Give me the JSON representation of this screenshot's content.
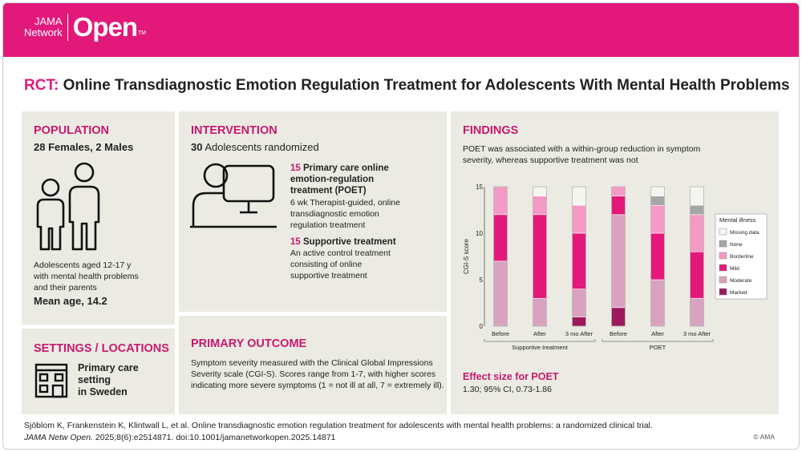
{
  "brand": {
    "line1": "JAMA",
    "line2": "Network",
    "name": "Open",
    "tm": "TM"
  },
  "title": {
    "prefix": "RCT:",
    "text": "Online Transdiagnostic Emotion Regulation Treatment for Adolescents With Mental Health Problems"
  },
  "population": {
    "heading": "POPULATION",
    "counts": "28 Females, 2 Males",
    "desc1": "Adolescents aged 12-17 y",
    "desc2": "with mental health problems",
    "desc3": "and their parents",
    "mean_age": "Mean age, 14.2",
    "icon": "people-icon"
  },
  "settings": {
    "heading": "SETTINGS / LOCATIONS",
    "line1": "Primary care",
    "line2": "setting",
    "line3": "in Sweden",
    "icon": "building-icon"
  },
  "intervention": {
    "heading": "INTERVENTION",
    "total_num": "30",
    "total_text": "Adolescents randomized",
    "icon": "computer-user-icon",
    "arm1": {
      "num": "15",
      "name1": "Primary care online",
      "name2": "emotion-regulation",
      "name3": "treatment (POET)",
      "desc1": "6 wk Therapist-guided, online",
      "desc2": "transdiagnostic emotion",
      "desc3": "regulation treatment"
    },
    "arm2": {
      "num": "15",
      "name": "Supportive treatment",
      "desc1": "An active control treatment",
      "desc2": "consisting of online",
      "desc3": "supportive treatment"
    }
  },
  "outcome": {
    "heading": "PRIMARY OUTCOME",
    "line1": "Symptom severity measured with the Clinical Global Impressions",
    "line2": "Severity scale (CGI-S). Scores range from 1-7, with higher scores",
    "line3": "indicating more severe symptoms (1 = not ill at all, 7 = extremely ill)."
  },
  "findings": {
    "heading": "FINDINGS",
    "line1": "POET was associated with a within-group reduction in symptom",
    "line2": "severity, whereas supportive treatment was not",
    "effect_heading": "Effect size for POET",
    "effect_value": "1.30; 95% CI, 0.73-1.86"
  },
  "chart_data": {
    "type": "bar",
    "stacked": true,
    "ylabel": "CGI-S score",
    "ylim": [
      0,
      15
    ],
    "yticks": [
      0,
      5,
      10,
      15
    ],
    "categories": [
      "Before",
      "After",
      "3 mo After",
      "Before",
      "After",
      "3 mo After"
    ],
    "groups": [
      {
        "label": "Supportive treatment",
        "categories": [
          0,
          1,
          2
        ]
      },
      {
        "label": "POET",
        "categories": [
          3,
          4,
          5
        ]
      }
    ],
    "legend_title": "Mental illness",
    "legend_position": "right",
    "series": [
      {
        "name": "Marked",
        "color": "#9c1a5c",
        "values": [
          0,
          0,
          1,
          2,
          0,
          0
        ]
      },
      {
        "name": "Moderate",
        "color": "#d9a3c0",
        "values": [
          7,
          3,
          3,
          10,
          5,
          3
        ]
      },
      {
        "name": "Mild",
        "color": "#e4187a",
        "values": [
          5,
          9,
          6,
          2,
          5,
          5
        ]
      },
      {
        "name": "Borderline",
        "color": "#f59ac5",
        "values": [
          3,
          2,
          3,
          1,
          3,
          4
        ]
      },
      {
        "name": "None",
        "color": "#a6a6a6",
        "values": [
          0,
          0,
          0,
          0,
          1,
          1
        ]
      },
      {
        "name": "Missing data",
        "color": "#f5f5ef",
        "values": [
          0,
          1,
          2,
          0,
          1,
          2
        ]
      }
    ],
    "legend_order": [
      "Missing data",
      "None",
      "Borderline",
      "Mild",
      "Moderate",
      "Marked"
    ]
  },
  "citation": {
    "line1": "Sjöblom K, Frankenstein K, Klintwall L, et al. Online transdiagnostic emotion regulation treatment for adolescents with mental health problems: a randomized clinical trial.",
    "journal": "JAMA Netw Open.",
    "rest": " 2025;8(6):e2514871. doi:10.1001/jamanetworkopen.2025.14871",
    "copyright": "© AMA"
  }
}
